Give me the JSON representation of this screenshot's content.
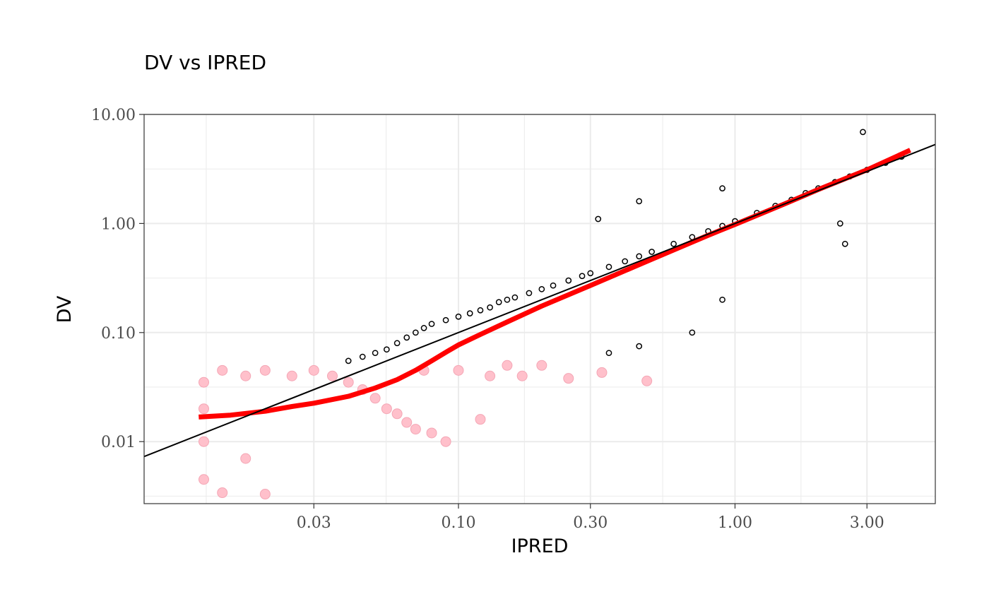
{
  "chart_data": {
    "type": "scatter",
    "title": "DV vs IPRED",
    "xlabel": "IPRED",
    "ylabel": "DV",
    "x_scale": "log10",
    "y_scale": "log10",
    "xlim": [
      0.0073,
      5.3
    ],
    "ylim": [
      0.0027,
      10.0
    ],
    "x_ticks": [
      0.03,
      0.1,
      0.3,
      1.0,
      3.0
    ],
    "x_tick_labels": [
      "0.03",
      "0.10",
      "0.30",
      "1.00",
      "3.00"
    ],
    "y_ticks": [
      0.01,
      0.1,
      1.0,
      10.0
    ],
    "y_tick_labels": [
      "0.01",
      "0.10",
      "1.00",
      "10.00"
    ],
    "grid": true,
    "legend": "none",
    "colors": {
      "observed_points": "#000000",
      "blq_points": "#ffc0cb",
      "smooth": "#ff0000",
      "identity": "#000000",
      "grid": "#ebebeb",
      "panel_border": "#333333"
    },
    "series": [
      {
        "kind": "scatter-open",
        "color": "#000000",
        "points": [
          [
            0.04,
            0.055
          ],
          [
            0.045,
            0.06
          ],
          [
            0.05,
            0.065
          ],
          [
            0.055,
            0.07
          ],
          [
            0.06,
            0.08
          ],
          [
            0.065,
            0.09
          ],
          [
            0.07,
            0.1
          ],
          [
            0.075,
            0.11
          ],
          [
            0.08,
            0.12
          ],
          [
            0.09,
            0.13
          ],
          [
            0.1,
            0.14
          ],
          [
            0.11,
            0.15
          ],
          [
            0.12,
            0.16
          ],
          [
            0.13,
            0.17
          ],
          [
            0.14,
            0.19
          ],
          [
            0.15,
            0.2
          ],
          [
            0.16,
            0.21
          ],
          [
            0.18,
            0.23
          ],
          [
            0.2,
            0.25
          ],
          [
            0.22,
            0.27
          ],
          [
            0.25,
            0.3
          ],
          [
            0.28,
            0.33
          ],
          [
            0.3,
            0.35
          ],
          [
            0.35,
            0.4
          ],
          [
            0.4,
            0.45
          ],
          [
            0.45,
            0.5
          ],
          [
            0.5,
            0.55
          ],
          [
            0.6,
            0.65
          ],
          [
            0.7,
            0.75
          ],
          [
            0.8,
            0.85
          ],
          [
            0.9,
            0.95
          ],
          [
            1.0,
            1.05
          ],
          [
            1.2,
            1.25
          ],
          [
            1.4,
            1.45
          ],
          [
            1.6,
            1.65
          ],
          [
            1.8,
            1.9
          ],
          [
            2.0,
            2.1
          ],
          [
            2.3,
            2.4
          ],
          [
            2.6,
            2.7
          ],
          [
            3.0,
            3.1
          ],
          [
            3.5,
            3.6
          ],
          [
            4.0,
            4.1
          ],
          [
            2.9,
            6.9
          ],
          [
            0.7,
            0.1
          ],
          [
            0.45,
            0.075
          ],
          [
            0.9,
            0.2
          ],
          [
            0.32,
            1.1
          ],
          [
            0.45,
            1.6
          ],
          [
            0.9,
            2.1
          ],
          [
            2.5,
            0.65
          ],
          [
            2.4,
            1.0
          ],
          [
            0.35,
            0.065
          ]
        ]
      },
      {
        "kind": "scatter-filled-blq",
        "color": "#ffc0cb",
        "points": [
          [
            0.012,
            0.035
          ],
          [
            0.012,
            0.02
          ],
          [
            0.012,
            0.01
          ],
          [
            0.012,
            0.0045
          ],
          [
            0.014,
            0.045
          ],
          [
            0.014,
            0.0034
          ],
          [
            0.017,
            0.04
          ],
          [
            0.017,
            0.007
          ],
          [
            0.02,
            0.045
          ],
          [
            0.02,
            0.0033
          ],
          [
            0.025,
            0.04
          ],
          [
            0.03,
            0.045
          ],
          [
            0.035,
            0.04
          ],
          [
            0.04,
            0.035
          ],
          [
            0.045,
            0.03
          ],
          [
            0.05,
            0.025
          ],
          [
            0.055,
            0.02
          ],
          [
            0.06,
            0.018
          ],
          [
            0.065,
            0.015
          ],
          [
            0.07,
            0.013
          ],
          [
            0.075,
            0.045
          ],
          [
            0.08,
            0.012
          ],
          [
            0.09,
            0.01
          ],
          [
            0.1,
            0.045
          ],
          [
            0.12,
            0.016
          ],
          [
            0.13,
            0.04
          ],
          [
            0.15,
            0.05
          ],
          [
            0.17,
            0.04
          ],
          [
            0.2,
            0.05
          ],
          [
            0.25,
            0.038
          ],
          [
            0.33,
            0.043
          ],
          [
            0.48,
            0.036
          ]
        ]
      }
    ],
    "smooth": {
      "color": "#ff0000",
      "points": [
        [
          0.0115,
          0.0168
        ],
        [
          0.015,
          0.0175
        ],
        [
          0.02,
          0.019
        ],
        [
          0.025,
          0.021
        ],
        [
          0.03,
          0.0225
        ],
        [
          0.04,
          0.026
        ],
        [
          0.05,
          0.031
        ],
        [
          0.06,
          0.037
        ],
        [
          0.07,
          0.045
        ],
        [
          0.08,
          0.055
        ],
        [
          0.09,
          0.066
        ],
        [
          0.1,
          0.077
        ],
        [
          0.12,
          0.096
        ],
        [
          0.15,
          0.125
        ],
        [
          0.2,
          0.175
        ],
        [
          0.3,
          0.27
        ],
        [
          0.5,
          0.47
        ],
        [
          0.8,
          0.78
        ],
        [
          1.0,
          0.98
        ],
        [
          1.5,
          1.5
        ],
        [
          2.0,
          2.05
        ],
        [
          3.0,
          3.1
        ],
        [
          4.3,
          4.7
        ]
      ]
    },
    "identity_line": {
      "slope": 1,
      "intercept": 0,
      "color": "#000000"
    }
  }
}
